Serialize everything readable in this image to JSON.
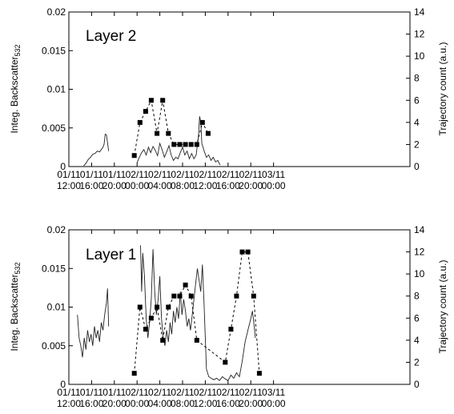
{
  "chart_data": [
    {
      "type": "line",
      "panel_label": "Layer 2",
      "ylabel_left": "Integ. Backscatter",
      "ylabel_left_subscript": "532",
      "ylabel_right": "Trajectory count (a.u.)",
      "xlim_hours": [
        0,
        60
      ],
      "ylim_left": [
        0,
        0.02
      ],
      "ylim_right": [
        0,
        14
      ],
      "x_ticks": [
        {
          "hour": 0,
          "line1": "01/11",
          "line2": "12:00"
        },
        {
          "hour": 4,
          "line1": "01/11",
          "line2": "16:00"
        },
        {
          "hour": 8,
          "line1": "01/11",
          "line2": "20:00"
        },
        {
          "hour": 12,
          "line1": "02/11",
          "line2": "00:00"
        },
        {
          "hour": 16,
          "line1": "02/11",
          "line2": "04:00"
        },
        {
          "hour": 20,
          "line1": "02/11",
          "line2": "08:00"
        },
        {
          "hour": 24,
          "line1": "02/11",
          "line2": "12:00"
        },
        {
          "hour": 28,
          "line1": "02/11",
          "line2": "16:00"
        },
        {
          "hour": 32,
          "line1": "02/11",
          "line2": "20:00"
        },
        {
          "hour": 36,
          "line1": "03/11",
          "line2": "00:00"
        }
      ],
      "y_ticks_left": [
        "0",
        "0.005",
        "0.01",
        "0.015",
        "0.02"
      ],
      "y_ticks_left_values": [
        0,
        0.005,
        0.01,
        0.015,
        0.02
      ],
      "y_ticks_right": [
        "0",
        "2",
        "4",
        "6",
        "8",
        "10",
        "12",
        "14"
      ],
      "y_ticks_right_values": [
        0,
        2,
        4,
        6,
        8,
        10,
        12,
        14
      ],
      "series": [
        {
          "axis": "left",
          "style": "solid",
          "segments": [
            [
              [
                2.6,
                0.0001
              ],
              [
                3.0,
                0.0004
              ],
              [
                3.4,
                0.0009
              ],
              [
                3.8,
                0.0012
              ],
              [
                4.2,
                0.0016
              ],
              [
                4.6,
                0.0017
              ],
              [
                5.0,
                0.002
              ],
              [
                5.4,
                0.0019
              ],
              [
                5.8,
                0.0023
              ],
              [
                6.0,
                0.0025
              ],
              [
                6.2,
                0.0029
              ],
              [
                6.4,
                0.0042
              ],
              [
                6.6,
                0.0041
              ],
              [
                6.8,
                0.0031
              ],
              [
                7.0,
                0.002
              ]
            ],
            [
              [
                12.0,
                0.0005
              ],
              [
                12.4,
                0.0012
              ],
              [
                12.8,
                0.0018
              ],
              [
                13.2,
                0.0022
              ],
              [
                13.6,
                0.0015
              ],
              [
                14.0,
                0.0025
              ],
              [
                14.4,
                0.0018
              ],
              [
                14.8,
                0.0026
              ],
              [
                15.2,
                0.0021
              ],
              [
                15.6,
                0.0014
              ],
              [
                16.0,
                0.003
              ],
              [
                16.4,
                0.0022
              ],
              [
                16.8,
                0.0012
              ],
              [
                17.2,
                0.0019
              ],
              [
                17.6,
                0.0027
              ],
              [
                18.0,
                0.0015
              ],
              [
                18.4,
                0.0008
              ],
              [
                18.8,
                0.0012
              ],
              [
                19.2,
                0.001
              ],
              [
                19.6,
                0.0018
              ],
              [
                20.0,
                0.0025
              ],
              [
                20.4,
                0.0015
              ],
              [
                20.8,
                0.002
              ],
              [
                21.2,
                0.001
              ],
              [
                21.6,
                0.0017
              ],
              [
                22.0,
                0.001
              ],
              [
                22.4,
                0.0015
              ],
              [
                22.8,
                0.004
              ],
              [
                23.0,
                0.0065
              ],
              [
                23.2,
                0.0058
              ],
              [
                23.4,
                0.003
              ],
              [
                23.8,
                0.002
              ],
              [
                24.2,
                0.0012
              ],
              [
                24.6,
                0.0015
              ],
              [
                25.0,
                0.0008
              ],
              [
                25.4,
                0.0012
              ],
              [
                25.8,
                0.0006
              ],
              [
                26.2,
                0.0008
              ],
              [
                26.6,
                0.0002
              ]
            ]
          ]
        },
        {
          "axis": "right",
          "style": "dashed",
          "marker": "square",
          "points": [
            [
              11.5,
              1
            ],
            [
              12.5,
              4
            ],
            [
              13.5,
              5
            ],
            [
              14.5,
              6
            ],
            [
              15.5,
              3
            ],
            [
              16.5,
              6
            ],
            [
              17.5,
              3
            ],
            [
              18.5,
              2
            ],
            [
              19.5,
              2
            ],
            [
              20.5,
              2
            ],
            [
              21.5,
              2
            ],
            [
              22.5,
              2
            ],
            [
              23.5,
              4
            ],
            [
              24.5,
              3
            ]
          ]
        }
      ]
    },
    {
      "type": "line",
      "panel_label": "Layer 1",
      "ylabel_left": "Integ. Backscatter",
      "ylabel_left_subscript": "532",
      "ylabel_right": "Trajectory count (a.u.)",
      "xlim_hours": [
        0,
        60
      ],
      "ylim_left": [
        0,
        0.02
      ],
      "ylim_right": [
        0,
        14
      ],
      "x_ticks": [
        {
          "hour": 0,
          "line1": "01/11",
          "line2": "12:00"
        },
        {
          "hour": 4,
          "line1": "01/11",
          "line2": "16:00"
        },
        {
          "hour": 8,
          "line1": "01/11",
          "line2": "20:00"
        },
        {
          "hour": 12,
          "line1": "02/11",
          "line2": "00:00"
        },
        {
          "hour": 16,
          "line1": "02/11",
          "line2": "04:00"
        },
        {
          "hour": 20,
          "line1": "02/11",
          "line2": "08:00"
        },
        {
          "hour": 24,
          "line1": "02/11",
          "line2": "12:00"
        },
        {
          "hour": 28,
          "line1": "02/11",
          "line2": "16:00"
        },
        {
          "hour": 32,
          "line1": "02/11",
          "line2": "20:00"
        },
        {
          "hour": 36,
          "line1": "03/11",
          "line2": "00:00"
        }
      ],
      "y_ticks_left": [
        "0",
        "0.005",
        "0.01",
        "0.015",
        "0.02"
      ],
      "y_ticks_left_values": [
        0,
        0.005,
        0.01,
        0.015,
        0.02
      ],
      "y_ticks_right": [
        "0",
        "2",
        "4",
        "6",
        "8",
        "10",
        "12",
        "14"
      ],
      "y_ticks_right_values": [
        0,
        2,
        4,
        6,
        8,
        10,
        12,
        14
      ],
      "series": [
        {
          "axis": "left",
          "style": "solid",
          "segments": [
            [
              [
                1.5,
                0.009
              ],
              [
                1.8,
                0.006
              ],
              [
                2.1,
                0.005
              ],
              [
                2.4,
                0.0035
              ],
              [
                2.7,
                0.006
              ],
              [
                3.0,
                0.0045
              ],
              [
                3.3,
                0.007
              ],
              [
                3.6,
                0.0055
              ],
              [
                3.9,
                0.0065
              ],
              [
                4.2,
                0.005
              ],
              [
                4.5,
                0.0075
              ],
              [
                4.8,
                0.006
              ],
              [
                5.1,
                0.007
              ],
              [
                5.4,
                0.0055
              ],
              [
                5.7,
                0.008
              ],
              [
                6.0,
                0.007
              ],
              [
                6.3,
                0.009
              ],
              [
                6.6,
                0.0105
              ],
              [
                6.8,
                0.0124
              ],
              [
                7.0,
                0.0075
              ]
            ],
            [
              [
                12.6,
                0.018
              ],
              [
                12.8,
                0.012
              ],
              [
                13.0,
                0.017
              ],
              [
                13.3,
                0.014
              ],
              [
                13.6,
                0.0085
              ],
              [
                13.9,
                0.006
              ],
              [
                14.2,
                0.008
              ],
              [
                14.5,
                0.011
              ],
              [
                14.8,
                0.0175
              ],
              [
                15.1,
                0.012
              ],
              [
                15.4,
                0.009
              ],
              [
                15.7,
                0.011
              ],
              [
                16.0,
                0.014
              ],
              [
                16.3,
                0.0085
              ],
              [
                16.6,
                0.006
              ],
              [
                16.9,
                0.005
              ],
              [
                17.2,
                0.007
              ],
              [
                17.5,
                0.0055
              ],
              [
                17.8,
                0.008
              ],
              [
                18.1,
                0.0065
              ],
              [
                18.4,
                0.0095
              ],
              [
                18.7,
                0.008
              ],
              [
                19.0,
                0.01
              ],
              [
                19.3,
                0.0085
              ],
              [
                19.6,
                0.012
              ],
              [
                19.9,
                0.009
              ],
              [
                20.2,
                0.011
              ],
              [
                20.5,
                0.0095
              ],
              [
                20.8,
                0.0075
              ],
              [
                21.1,
                0.0085
              ],
              [
                21.4,
                0.007
              ],
              [
                21.7,
                0.009
              ],
              [
                22.0,
                0.011
              ],
              [
                22.3,
                0.013
              ],
              [
                22.6,
                0.015
              ],
              [
                22.9,
                0.0135
              ],
              [
                23.2,
                0.012
              ],
              [
                23.5,
                0.0155
              ],
              [
                23.8,
                0.01
              ],
              [
                24.0,
                0.006
              ],
              [
                24.2,
                0.002
              ],
              [
                24.6,
                0.001
              ],
              [
                25.0,
                0.0008
              ],
              [
                25.5,
                0.0006
              ],
              [
                26.0,
                0.0008
              ],
              [
                26.5,
                0.0005
              ],
              [
                27.0,
                0.001
              ],
              [
                27.5,
                0.0007
              ],
              [
                28.0,
                0.0005
              ],
              [
                28.5,
                0.0012
              ],
              [
                29.0,
                0.0008
              ],
              [
                29.5,
                0.0015
              ],
              [
                30.0,
                0.001
              ],
              [
                30.5,
                0.003
              ],
              [
                31.0,
                0.0055
              ],
              [
                31.5,
                0.007
              ],
              [
                32.0,
                0.0085
              ],
              [
                32.3,
                0.0095
              ],
              [
                32.6,
                0.0075
              ],
              [
                32.8,
                0.006
              ]
            ]
          ]
        },
        {
          "axis": "right",
          "style": "dashed",
          "marker": "square",
          "points": [
            [
              11.5,
              1
            ],
            [
              12.5,
              7
            ],
            [
              13.5,
              5
            ],
            [
              14.5,
              6
            ],
            [
              15.5,
              7
            ],
            [
              16.5,
              4
            ],
            [
              17.5,
              7
            ],
            [
              18.5,
              8
            ],
            [
              19.5,
              8
            ],
            [
              20.5,
              9
            ],
            [
              21.5,
              8
            ],
            [
              22.5,
              4
            ],
            [
              27.5,
              2
            ],
            [
              28.5,
              5
            ],
            [
              29.5,
              8
            ],
            [
              30.5,
              12
            ],
            [
              31.5,
              12
            ],
            [
              32.5,
              8
            ],
            [
              33.5,
              1
            ]
          ]
        }
      ]
    }
  ]
}
